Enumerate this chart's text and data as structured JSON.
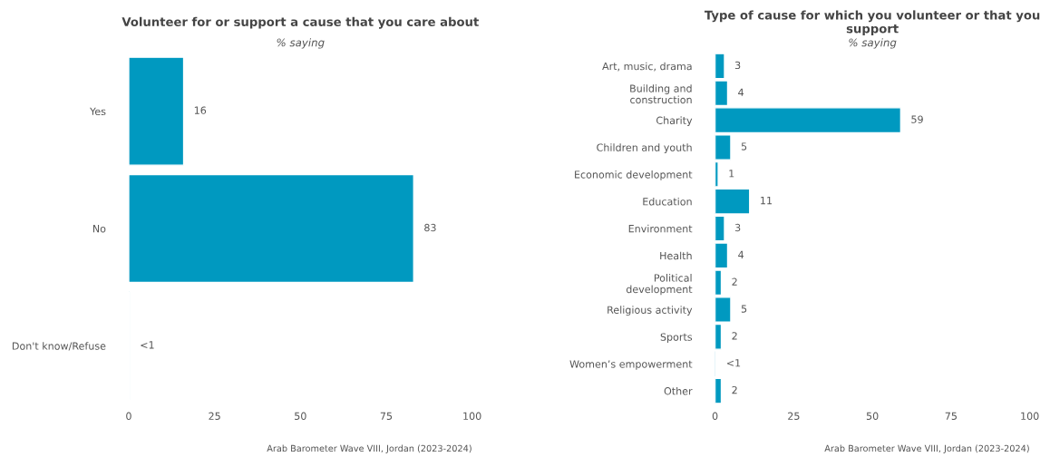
{
  "chart_data": [
    {
      "type": "bar",
      "orientation": "horizontal",
      "title": "Volunteer for or support a cause that you care about",
      "subtitle": "% saying",
      "categories": [
        "Yes",
        "No",
        "Don't know/Refuse"
      ],
      "series": [
        {
          "color": "#0099c0",
          "values": [
            16,
            83,
            0.3
          ],
          "value_labels": [
            "16",
            "83",
            "<1"
          ]
        }
      ],
      "xlim": [
        0,
        100
      ],
      "xticks": [
        0,
        25,
        50,
        75,
        100
      ],
      "grid": false,
      "legend": false,
      "annotations": [
        "Arab Barometer Wave VIII, Jordan (2023-2024)"
      ]
    },
    {
      "type": "bar",
      "orientation": "horizontal",
      "title": "Type of cause for which you volunteer or that you support",
      "subtitle": "% saying",
      "categories": [
        "Art, music, drama",
        "Building and\nconstruction",
        "Charity",
        "Children and youth",
        "Economic development",
        "Education",
        "Environment",
        "Health",
        "Political\ndevelopment",
        "Religious activity",
        "Sports",
        "Women’s empowerment",
        "Other"
      ],
      "series": [
        {
          "color": "#0099c0",
          "values": [
            3,
            4,
            59,
            5,
            1,
            11,
            3,
            4,
            2,
            5,
            2,
            0.3,
            2
          ],
          "value_labels": [
            "3",
            "4",
            "59",
            "5",
            "1",
            "11",
            "3",
            "4",
            "2",
            "5",
            "2",
            "<1",
            "2"
          ]
        }
      ],
      "xlim": [
        0,
        100
      ],
      "xticks": [
        0,
        25,
        50,
        75,
        100
      ],
      "grid": false,
      "legend": false,
      "annotations": [
        "Arab Barometer Wave VIII, Jordan (2023-2024)"
      ]
    }
  ]
}
